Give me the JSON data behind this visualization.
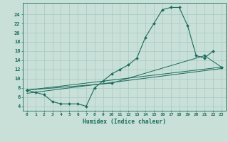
{
  "bg_color": "#c8e0d8",
  "grid_color": "#a8c8c0",
  "line_color": "#1a6b5a",
  "xlabel": "Humidex (Indice chaleur)",
  "xlim": [
    -0.5,
    23.5
  ],
  "ylim": [
    3.0,
    26.5
  ],
  "xticks": [
    0,
    1,
    2,
    3,
    4,
    5,
    6,
    7,
    8,
    9,
    10,
    11,
    12,
    13,
    14,
    15,
    16,
    17,
    18,
    19,
    20,
    21,
    22,
    23
  ],
  "yticks": [
    4,
    6,
    8,
    10,
    12,
    14,
    16,
    18,
    20,
    22,
    24
  ],
  "line1_x": [
    0,
    1,
    2,
    3,
    4,
    5,
    6,
    7,
    8,
    9,
    10,
    11,
    12,
    13,
    14,
    15,
    16,
    17,
    18,
    19,
    20,
    21,
    22
  ],
  "line1_y": [
    7.5,
    7.0,
    6.5,
    5.0,
    4.5,
    4.5,
    4.5,
    4.0,
    8.0,
    9.5,
    11.0,
    12.0,
    13.0,
    14.5,
    19.0,
    22.0,
    25.0,
    25.5,
    25.5,
    21.5,
    15.0,
    14.5,
    16.0
  ],
  "line2_x": [
    0,
    10,
    21,
    23
  ],
  "line2_y": [
    7.5,
    9.0,
    15.0,
    12.5
  ],
  "line3_x": [
    0,
    23
  ],
  "line3_y": [
    7.5,
    12.5
  ],
  "line4_x": [
    0,
    23
  ],
  "line4_y": [
    6.8,
    12.2
  ]
}
